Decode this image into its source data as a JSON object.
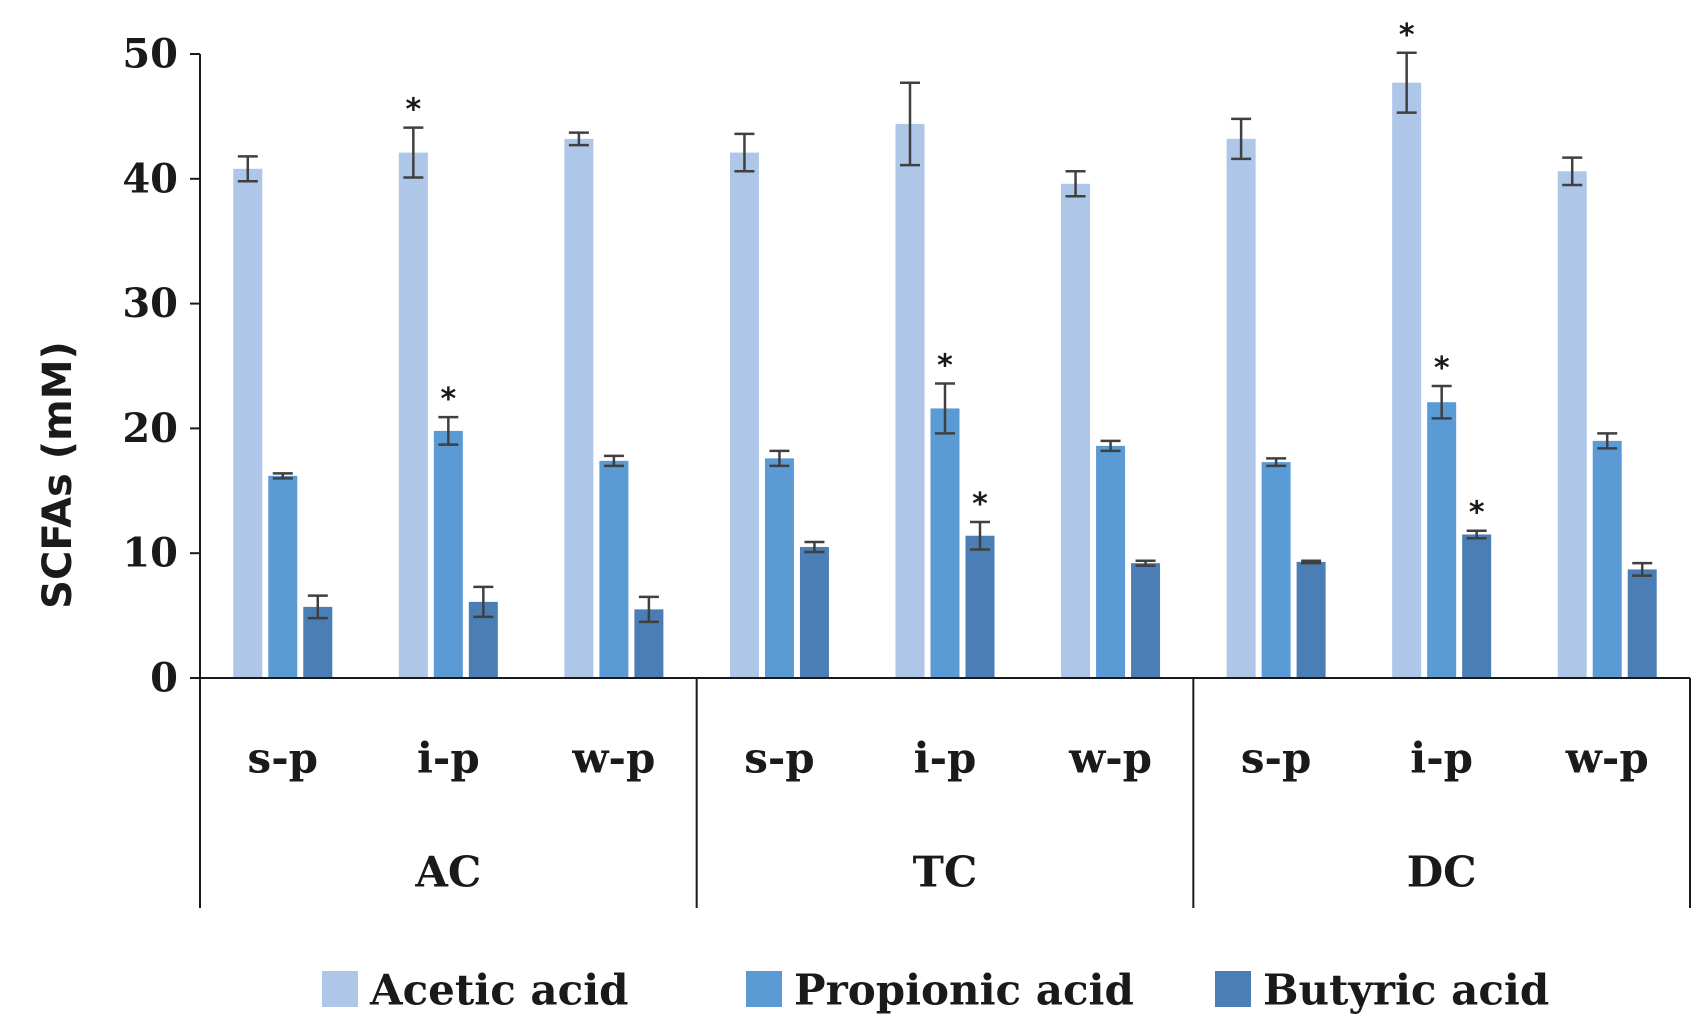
{
  "chart_data": {
    "type": "bar",
    "xlabel": "",
    "ylabel": "SCFAs (mM)",
    "ylim": [
      0,
      50
    ],
    "yticks": [
      0,
      10,
      20,
      30,
      40,
      50
    ],
    "grid": false,
    "legend_position": "bottom",
    "categories": [
      "s-p",
      "i-p",
      "w-p",
      "s-p",
      "i-p",
      "w-p",
      "s-p",
      "i-p",
      "w-p"
    ],
    "groups": [
      {
        "label": "AC",
        "categories": [
          "s-p",
          "i-p",
          "w-p"
        ]
      },
      {
        "label": "TC",
        "categories": [
          "s-p",
          "i-p",
          "w-p"
        ]
      },
      {
        "label": "DC",
        "categories": [
          "s-p",
          "i-p",
          "w-p"
        ]
      }
    ],
    "series": [
      {
        "name": "Acetic acid",
        "color": "#aec6e8",
        "values": [
          40.8,
          42.1,
          43.2,
          42.1,
          44.4,
          39.6,
          43.2,
          47.7,
          40.6
        ],
        "errors": [
          1.0,
          2.0,
          0.5,
          1.5,
          3.3,
          1.0,
          1.6,
          2.4,
          1.1
        ],
        "significant": [
          false,
          true,
          false,
          false,
          false,
          false,
          false,
          true,
          false
        ]
      },
      {
        "name": "Propionic acid",
        "color": "#5b9bd5",
        "values": [
          16.2,
          19.8,
          17.4,
          17.6,
          21.6,
          18.6,
          17.3,
          22.1,
          19.0
        ],
        "errors": [
          0.2,
          1.1,
          0.4,
          0.6,
          2.0,
          0.4,
          0.3,
          1.3,
          0.6
        ],
        "significant": [
          false,
          true,
          false,
          false,
          true,
          false,
          false,
          true,
          false
        ]
      },
      {
        "name": "Butyric acid",
        "color": "#4a7eb4",
        "values": [
          5.7,
          6.1,
          5.5,
          10.5,
          11.4,
          9.2,
          9.3,
          11.5,
          8.7
        ],
        "errors": [
          0.9,
          1.2,
          1.0,
          0.4,
          1.1,
          0.2,
          0.1,
          0.3,
          0.5
        ],
        "significant": [
          false,
          false,
          false,
          false,
          true,
          false,
          false,
          true,
          false
        ]
      }
    ],
    "significance_marker": "*",
    "error_bar_color": "#404040"
  }
}
